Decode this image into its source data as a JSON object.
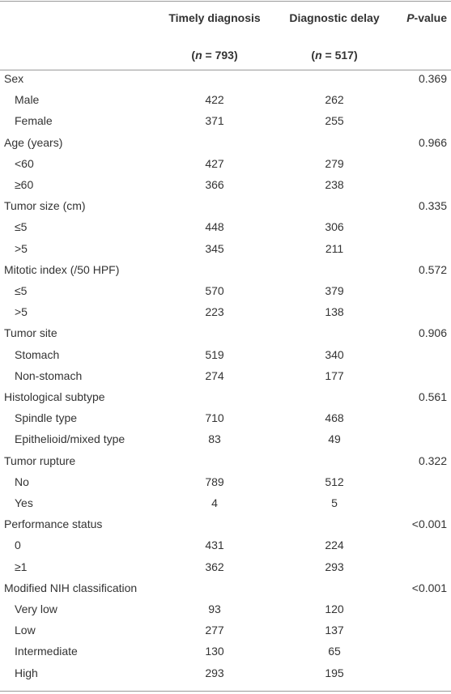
{
  "table": {
    "header": {
      "timely": "Timely diagnosis",
      "delay": "Diagnostic delay",
      "pvalue": {
        "italic": "P",
        "rest": "-value"
      },
      "counts": [
        {
          "open": "(",
          "var": "n",
          "rest": " = 793)"
        },
        {
          "open": "(",
          "var": "n",
          "rest": " = 517)"
        }
      ]
    },
    "groups": [
      {
        "label": "Sex",
        "p": "0.369",
        "rows": [
          [
            "Male",
            422,
            262
          ],
          [
            "Female",
            371,
            255
          ]
        ]
      },
      {
        "label": "Age (years)",
        "p": "0.966",
        "rows": [
          [
            "<60",
            427,
            279
          ],
          [
            "≥60",
            366,
            238
          ]
        ]
      },
      {
        "label": "Tumor size (cm)",
        "p": "0.335",
        "rows": [
          [
            "≤5",
            448,
            306
          ],
          [
            ">5",
            345,
            211
          ]
        ]
      },
      {
        "label": "Mitotic index (/50 HPF)",
        "p": "0.572",
        "rows": [
          [
            "≤5",
            570,
            379
          ],
          [
            ">5",
            223,
            138
          ]
        ]
      },
      {
        "label": "Tumor site",
        "p": "0.906",
        "rows": [
          [
            "Stomach",
            519,
            340
          ],
          [
            "Non-stomach",
            274,
            177
          ]
        ]
      },
      {
        "label": "Histological subtype",
        "p": "0.561",
        "rows": [
          [
            "Spindle type",
            710,
            468
          ],
          [
            "Epithelioid/mixed type",
            83,
            49
          ]
        ]
      },
      {
        "label": "Tumor rupture",
        "p": "0.322",
        "rows": [
          [
            "No",
            789,
            512
          ],
          [
            "Yes",
            4,
            5
          ]
        ]
      },
      {
        "label": "Performance status",
        "p": "<0.001",
        "rows": [
          [
            "0",
            431,
            224
          ],
          [
            "≥1",
            362,
            293
          ]
        ]
      },
      {
        "label": "Modified NIH classification",
        "p": "<0.001",
        "rows": [
          [
            "Very low",
            93,
            120
          ],
          [
            "Low",
            277,
            137
          ],
          [
            "Intermediate",
            130,
            65
          ],
          [
            "High",
            293,
            195
          ]
        ]
      }
    ]
  }
}
